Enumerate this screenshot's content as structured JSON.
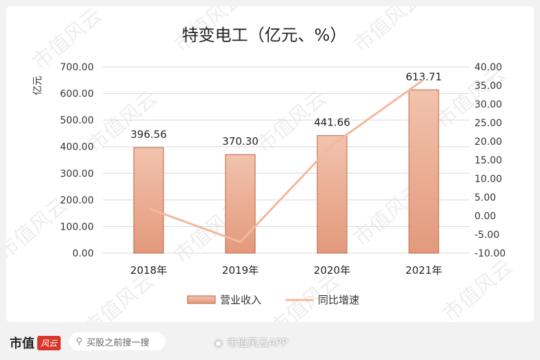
{
  "chart_data": {
    "type": "bar+line",
    "title": "特变电工（亿元、%）",
    "ylabel": "亿元",
    "categories": [
      "2018年",
      "2019年",
      "2020年",
      "2021年"
    ],
    "series": [
      {
        "name": "营业收入",
        "type": "bar",
        "axis": "left",
        "values": [
          396.56,
          370.3,
          441.66,
          613.71
        ],
        "labels": [
          "396.56",
          "370.30",
          "441.66",
          "613.71"
        ]
      },
      {
        "name": "同比增速",
        "type": "line",
        "axis": "right",
        "values": [
          2.0,
          -7.0,
          19.0,
          36.6
        ]
      }
    ],
    "ylim_left": [
      0,
      700
    ],
    "yticks_left": [
      "700.00",
      "600.00",
      "500.00",
      "400.00",
      "300.00",
      "200.00",
      "100.00",
      "0.00"
    ],
    "ylim_right": [
      -10,
      40
    ],
    "yticks_right": [
      "40.00",
      "35.00",
      "30.00",
      "25.00",
      "20.00",
      "15.00",
      "10.00",
      "5.00",
      "0.00",
      "-5.00",
      "-10.00"
    ],
    "legend_position": "bottom",
    "colors": {
      "bar_top": "#f2c3ad",
      "bar_bottom": "#e3997c",
      "bar_edge": "#c0603e",
      "line": "#f4b89b"
    }
  },
  "watermark": "市值风云",
  "footer": {
    "brand": "市值",
    "brand_logo": "风云",
    "search_placeholder": "买股之前搜一搜",
    "weibo_label": "市值风云APP"
  }
}
